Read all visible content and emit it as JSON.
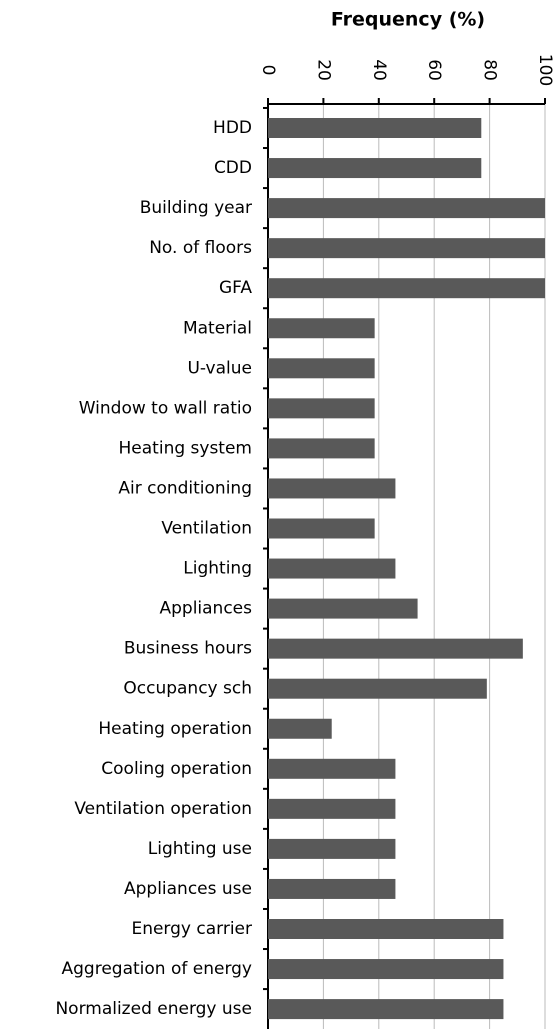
{
  "chart_data": {
    "type": "hbar",
    "x_label": "Frequency (%)",
    "categories": [
      "HDD",
      "CDD",
      "Building year",
      "No. of floors",
      "GFA",
      "Material",
      "U-value",
      "Window to wall ratio",
      "Heating system",
      "Air conditioning",
      "Ventilation",
      "Lighting",
      "Appliances",
      "Business hours",
      "Occupancy sch",
      "Heating operation",
      "Cooling operation",
      "Ventilation operation",
      "Lighting use",
      "Appliances use",
      "Energy carrier",
      "Aggregation of energy",
      "Normalized energy use"
    ],
    "values": [
      77,
      77,
      100,
      100,
      100,
      38.5,
      38.5,
      38.5,
      38.5,
      46,
      38.5,
      46,
      54,
      92,
      79,
      23,
      46,
      46,
      46,
      46,
      85,
      85,
      85
    ],
    "color": "#595959",
    "xlim": [
      0,
      100
    ],
    "xticks": [
      0,
      20,
      40,
      60,
      80,
      100
    ],
    "grid": true
  }
}
